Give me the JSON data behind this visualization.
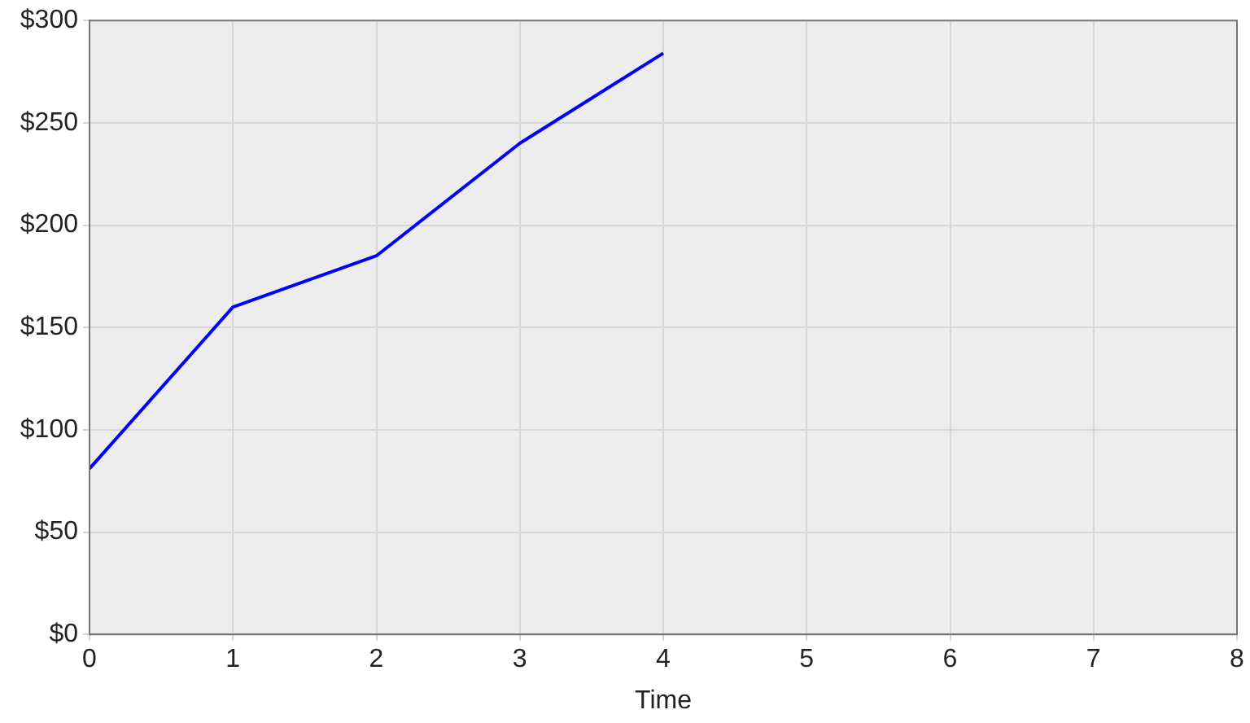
{
  "chart_data": {
    "type": "line",
    "xlabel": "Time",
    "x": [
      0,
      1,
      2,
      3,
      4
    ],
    "series": [
      {
        "color": "#0000ff",
        "values": [
          81,
          160,
          185,
          240,
          284
        ]
      }
    ],
    "xlim": [
      0,
      8
    ],
    "xticks": [
      0,
      1,
      2,
      3,
      4,
      5,
      6,
      7,
      8
    ],
    "ylim": [
      0,
      300
    ],
    "yticks": [
      {
        "value": 0,
        "label": "$0"
      },
      {
        "value": 50,
        "label": "$50"
      },
      {
        "value": 100,
        "label": "$100"
      },
      {
        "value": 150,
        "label": "$150"
      },
      {
        "value": 200,
        "label": "$200"
      },
      {
        "value": 250,
        "label": "$250"
      },
      {
        "value": 300,
        "label": "$300"
      }
    ],
    "grid": true,
    "marker": "none"
  }
}
